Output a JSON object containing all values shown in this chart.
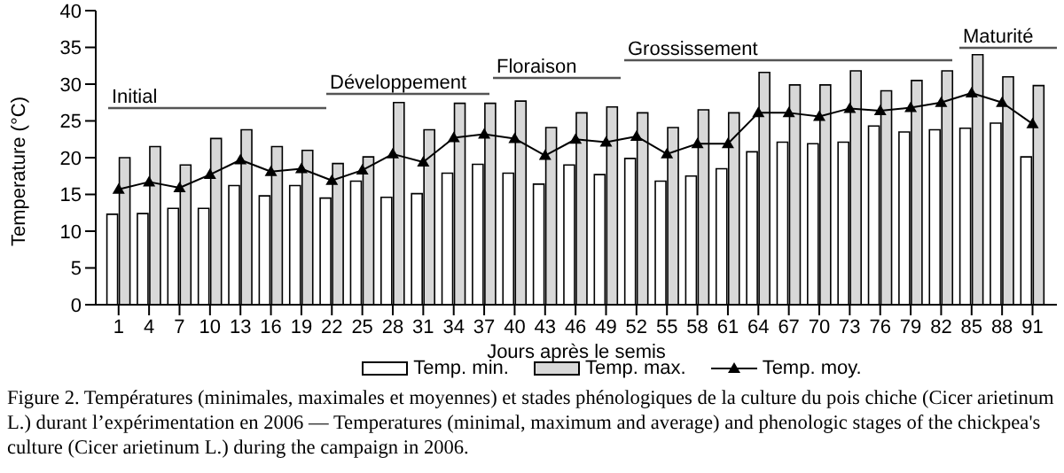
{
  "chart_data": {
    "type": "bar",
    "xlabel": "Jours après le semis",
    "ylabel": "Temperature (°C)",
    "categories": [
      "1",
      "4",
      "7",
      "10",
      "13",
      "16",
      "19",
      "22",
      "25",
      "28",
      "31",
      "34",
      "37",
      "40",
      "43",
      "46",
      "49",
      "52",
      "55",
      "58",
      "61",
      "64",
      "67",
      "70",
      "73",
      "76",
      "79",
      "82",
      "85",
      "88",
      "91"
    ],
    "series": [
      {
        "name": "Temp. min.",
        "color": "#ffffff",
        "values": [
          12.3,
          12.4,
          13.1,
          13.1,
          16.2,
          14.8,
          16.2,
          14.5,
          16.8,
          14.6,
          15.1,
          17.9,
          19.1,
          17.9,
          16.4,
          19,
          17.7,
          19.9,
          16.8,
          17.5,
          18.5,
          20.8,
          22.1,
          21.9,
          22.1,
          24.3,
          23.5,
          23.8,
          24,
          24.7,
          20.1
        ]
      },
      {
        "name": "Temp. max.",
        "color": "#d8d8d8",
        "values": [
          20,
          21.5,
          19,
          22.6,
          23.8,
          21.5,
          21,
          19.2,
          20.1,
          27.5,
          23.8,
          27.4,
          27.4,
          27.7,
          24.1,
          26.1,
          26.9,
          26.1,
          24.1,
          26.5,
          26.1,
          31.6,
          29.9,
          29.9,
          31.8,
          29.1,
          30.5,
          31.8,
          34,
          31,
          29.8
        ]
      },
      {
        "name": "Temp. moy.",
        "type": "line",
        "color": "#000000",
        "marker": "triangle",
        "values": [
          15.7,
          16.7,
          15.9,
          17.7,
          19.7,
          18.1,
          18.5,
          16.9,
          18.3,
          20.5,
          19.4,
          22.7,
          23.2,
          22.6,
          20.3,
          22.5,
          22.1,
          22.9,
          20.5,
          21.9,
          21.9,
          26.1,
          26.1,
          25.6,
          26.7,
          26.4,
          26.8,
          27.5,
          28.8,
          27.5,
          24.6
        ]
      }
    ],
    "ylim": [
      0,
      40
    ],
    "yticks": [
      0,
      5,
      10,
      15,
      20,
      25,
      30,
      35,
      40
    ],
    "grid": false,
    "legend": "bottom",
    "annotations": [
      "Initial",
      "Développement",
      "Floraison",
      "Grossissement",
      "Maturité",
      "Figure 2. Températures (minimales, maximales et moyennes) et stades phénologiques de la culture du pois chiche (Cicer arietinum L.) durant l’expérimentation en 2006 — Temperatures (minimal, maximum and average) and phenologic stages of the chickpea's culture (Cicer arietinum L.) during the campaign in 2006."
    ]
  }
}
